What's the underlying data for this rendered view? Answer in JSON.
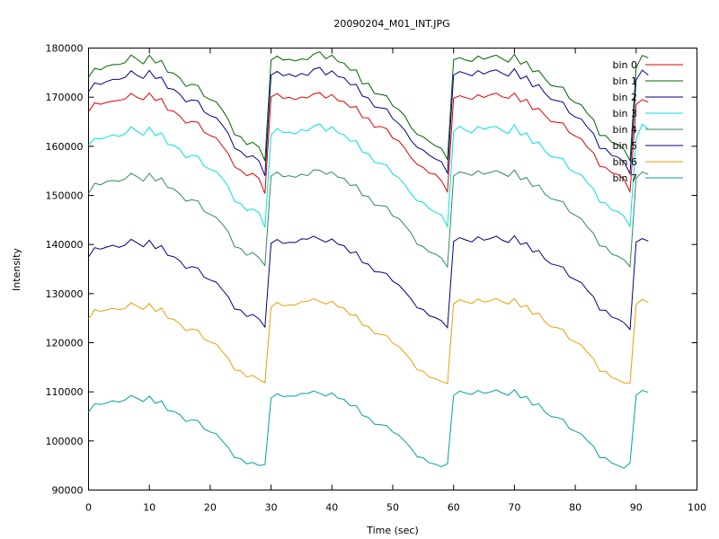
{
  "chart_data": {
    "type": "line",
    "title": "20090204_M01_INT.JPG",
    "xlabel": "Time (sec)",
    "ylabel": "Intensity",
    "xlim": [
      0,
      100
    ],
    "ylim": [
      90000,
      180000
    ],
    "xticks": [
      0,
      10,
      20,
      30,
      40,
      50,
      60,
      70,
      80,
      90,
      100
    ],
    "yticks": [
      90000,
      100000,
      110000,
      120000,
      130000,
      140000,
      150000,
      160000,
      170000,
      180000
    ],
    "xtick_labels": [
      "0",
      "10",
      "20",
      "30",
      "40",
      "50",
      "60",
      "70",
      "80",
      "90",
      "100"
    ],
    "ytick_labels": [
      "90000",
      "100000",
      "110000",
      "120000",
      "130000",
      "140000",
      "150000",
      "160000",
      "170000",
      "180000"
    ],
    "grid": false,
    "legend_position": "top-right",
    "x": [
      0,
      1,
      2,
      3,
      4,
      5,
      6,
      7,
      8,
      9,
      10,
      11,
      12,
      13,
      14,
      15,
      16,
      17,
      18,
      19,
      20,
      21,
      22,
      23,
      24,
      25,
      26,
      27,
      28,
      29,
      30,
      31,
      32,
      33,
      34,
      35,
      36,
      37,
      38,
      39,
      40,
      41,
      42,
      43,
      44,
      45,
      46,
      47,
      48,
      49,
      50,
      51,
      52,
      53,
      54,
      55,
      56,
      57,
      58,
      59,
      60,
      61,
      62,
      63,
      64,
      65,
      66,
      67,
      68,
      69,
      70,
      71,
      72,
      73,
      74,
      75,
      76,
      77,
      78,
      79,
      80,
      81,
      82,
      83,
      84,
      85,
      86,
      87,
      88,
      89,
      90,
      91,
      92
    ],
    "series": [
      {
        "name": "bin 0",
        "color": "#e00000",
        "values": [
          167040,
          168840,
          168540,
          168930,
          169190,
          169330,
          169620,
          170770,
          169920,
          169490,
          170830,
          169300,
          169750,
          167340,
          167160,
          166150,
          164700,
          165030,
          164890,
          162840,
          162190,
          161710,
          160060,
          158410,
          155790,
          155130,
          154010,
          154490,
          153450,
          150360,
          170040,
          170740,
          169750,
          169960,
          169520,
          170030,
          169840,
          170670,
          170910,
          169800,
          170540,
          169320,
          169080,
          167920,
          168100,
          165840,
          165770,
          163890,
          164050,
          163570,
          161660,
          161090,
          159610,
          157670,
          156310,
          155690,
          154520,
          154310,
          152970,
          150730,
          169770,
          170300,
          169900,
          169580,
          170490,
          169950,
          170470,
          170820,
          170070,
          169760,
          170860,
          169040,
          169580,
          167470,
          167730,
          166320,
          165040,
          164880,
          164730,
          162780,
          162100,
          161490,
          159790,
          158680,
          155950,
          155680,
          154590,
          154270,
          153290,
          150740,
          168500,
          169500,
          169000
        ]
      },
      {
        "name": "bin 1",
        "color": "#006400",
        "values": [
          174040,
          175870,
          175580,
          176330,
          176630,
          176660,
          177020,
          178600,
          177690,
          176780,
          178530,
          176940,
          177480,
          175090,
          174880,
          173920,
          172190,
          172620,
          172350,
          170160,
          169500,
          169050,
          167420,
          165400,
          162370,
          161970,
          160360,
          160810,
          159840,
          157040,
          177540,
          178350,
          177570,
          177720,
          177380,
          177780,
          177630,
          178760,
          179230,
          177800,
          178550,
          177230,
          176930,
          175520,
          175540,
          172680,
          172850,
          170760,
          170560,
          170280,
          168220,
          167470,
          166170,
          163850,
          162420,
          161920,
          160950,
          160090,
          159570,
          157310,
          177620,
          178050,
          177550,
          177280,
          178380,
          177720,
          178180,
          178560,
          177830,
          177130,
          178700,
          176700,
          177290,
          175170,
          175400,
          173760,
          172400,
          172140,
          172020,
          169780,
          168870,
          168460,
          166670,
          165470,
          162190,
          162190,
          160790,
          160410,
          159370,
          157070,
          176000,
          178500,
          178000
        ]
      },
      {
        "name": "bin 2",
        "color": "#00008b",
        "values": [
          171130,
          172910,
          172590,
          173200,
          173620,
          173610,
          174000,
          175380,
          174410,
          173810,
          175420,
          173790,
          174060,
          171810,
          171580,
          170620,
          169050,
          169420,
          169260,
          167010,
          166220,
          165800,
          164320,
          162540,
          159630,
          158960,
          157770,
          158060,
          157050,
          153980,
          174490,
          175250,
          174370,
          174710,
          174190,
          174830,
          174410,
          175710,
          176050,
          174530,
          175350,
          174200,
          173970,
          172540,
          172600,
          170240,
          169840,
          168010,
          167810,
          167630,
          165630,
          164600,
          163240,
          161200,
          159780,
          159220,
          158170,
          157430,
          156860,
          154530,
          174520,
          175200,
          174820,
          174350,
          175400,
          174710,
          175300,
          175560,
          174850,
          174300,
          175820,
          173730,
          174290,
          172120,
          172550,
          170800,
          169580,
          169280,
          168970,
          166810,
          165950,
          165540,
          163870,
          162600,
          159590,
          159520,
          158120,
          157790,
          156810,
          154410,
          173500,
          175500,
          174500
        ]
      },
      {
        "name": "bin 3",
        "color": "#00e0e0",
        "values": [
          160220,
          161620,
          161500,
          161860,
          162350,
          162010,
          162500,
          163960,
          163010,
          162260,
          163890,
          162120,
          162760,
          160400,
          160200,
          159360,
          157670,
          158140,
          157960,
          155970,
          155270,
          154840,
          153500,
          151710,
          148780,
          148310,
          146900,
          147220,
          146500,
          143510,
          162320,
          163610,
          162810,
          162870,
          162520,
          163380,
          163130,
          164080,
          164540,
          163110,
          163960,
          162760,
          162320,
          161070,
          161100,
          158820,
          158490,
          156710,
          156510,
          156190,
          154350,
          153550,
          152150,
          150340,
          148880,
          148610,
          147310,
          146570,
          146070,
          143590,
          162970,
          164090,
          163230,
          162740,
          164040,
          163470,
          163900,
          164030,
          163140,
          162600,
          164370,
          162250,
          162740,
          160580,
          160860,
          159060,
          157880,
          157710,
          157460,
          155350,
          154620,
          154180,
          152580,
          151330,
          148620,
          148480,
          147010,
          146700,
          145760,
          143710,
          161500,
          164500,
          163500
        ]
      },
      {
        "name": "bin 4",
        "color": "#2e8b57",
        "values": [
          150360,
          152460,
          152160,
          152840,
          153040,
          152880,
          153340,
          154500,
          153810,
          152900,
          154490,
          152930,
          153570,
          151620,
          151330,
          150290,
          148830,
          149100,
          148840,
          146740,
          146130,
          145490,
          144130,
          142510,
          139540,
          139210,
          137800,
          138370,
          137300,
          135690,
          153930,
          154750,
          153800,
          154010,
          153680,
          154330,
          154000,
          155220,
          155130,
          154300,
          154770,
          153690,
          153480,
          152020,
          152150,
          150000,
          149780,
          147990,
          147920,
          147750,
          145800,
          145300,
          143900,
          142370,
          140040,
          139550,
          138470,
          138080,
          137250,
          135410,
          153970,
          154800,
          154500,
          154060,
          155000,
          154320,
          154660,
          155050,
          154490,
          153850,
          155170,
          153200,
          153640,
          151790,
          152120,
          150270,
          149350,
          149020,
          148680,
          146690,
          145930,
          145240,
          143520,
          142260,
          139700,
          139580,
          138040,
          137620,
          136890,
          135460,
          153500,
          154800,
          154300
        ]
      },
      {
        "name": "bin 5",
        "color": "#000080",
        "values": [
          137460,
          139350,
          139050,
          139490,
          139850,
          139430,
          139870,
          141050,
          140320,
          139540,
          140880,
          139160,
          139800,
          137800,
          137520,
          136700,
          135130,
          135500,
          135200,
          133340,
          132770,
          132330,
          130790,
          129290,
          126860,
          126650,
          125350,
          125770,
          124840,
          123190,
          140230,
          141020,
          140210,
          140430,
          140390,
          141150,
          141080,
          141690,
          141050,
          140500,
          141130,
          140040,
          139750,
          138270,
          138500,
          136330,
          135990,
          134460,
          134380,
          134110,
          132520,
          131760,
          130430,
          128930,
          127110,
          126760,
          125480,
          125130,
          124490,
          123060,
          140620,
          141400,
          140930,
          140520,
          141560,
          140870,
          141200,
          141700,
          140870,
          140390,
          141790,
          140000,
          140380,
          138480,
          138760,
          136980,
          136060,
          135760,
          135380,
          133440,
          132850,
          132250,
          130620,
          129370,
          126650,
          126600,
          125250,
          124810,
          124090,
          122680,
          140500,
          141200,
          140700
        ]
      },
      {
        "name": "bin 6",
        "color": "#e8a000",
        "values": [
          124850,
          126750,
          126380,
          126690,
          127020,
          126690,
          126990,
          128140,
          127420,
          126760,
          127970,
          126360,
          127060,
          125020,
          124750,
          123840,
          122430,
          122780,
          122550,
          120710,
          120130,
          119710,
          118210,
          116770,
          114460,
          114260,
          113030,
          113350,
          112470,
          111860,
          127230,
          128230,
          127500,
          127660,
          127710,
          128330,
          128420,
          128970,
          128390,
          127870,
          128470,
          127320,
          127040,
          125630,
          125670,
          123600,
          123300,
          121850,
          121720,
          121490,
          119930,
          119250,
          117900,
          116470,
          114490,
          114200,
          113000,
          112710,
          112090,
          111660,
          127920,
          128780,
          128310,
          128020,
          128910,
          128280,
          128520,
          129020,
          128340,
          127870,
          129030,
          127270,
          127630,
          125780,
          126060,
          124230,
          123270,
          123050,
          122680,
          120740,
          120140,
          119570,
          118000,
          116770,
          114190,
          114160,
          112920,
          112460,
          111820,
          111780,
          127800,
          128800,
          128200
        ]
      },
      {
        "name": "bin 7",
        "color": "#00a0a0",
        "values": [
          105890,
          107570,
          107420,
          107750,
          108170,
          107900,
          108350,
          109260,
          108650,
          108010,
          109130,
          107660,
          108140,
          106180,
          106030,
          105360,
          103930,
          104320,
          104140,
          102420,
          101830,
          101450,
          99990,
          98620,
          96600,
          96400,
          95340,
          95610,
          94990,
          95190,
          108740,
          109610,
          109020,
          109150,
          109120,
          109680,
          109650,
          110160,
          109710,
          109110,
          109780,
          108730,
          108480,
          107180,
          107180,
          105180,
          104790,
          103420,
          103290,
          103130,
          101820,
          101150,
          99940,
          98520,
          96810,
          96540,
          95540,
          95270,
          94740,
          95340,
          109280,
          110150,
          109740,
          109460,
          110280,
          109680,
          109940,
          110410,
          109760,
          109300,
          110410,
          108760,
          109080,
          107290,
          107570,
          105870,
          104980,
          104780,
          104400,
          102540,
          101960,
          101440,
          100040,
          98900,
          96600,
          96570,
          95490,
          95000,
          94450,
          95530,
          109300,
          110300,
          109900
        ]
      }
    ]
  }
}
